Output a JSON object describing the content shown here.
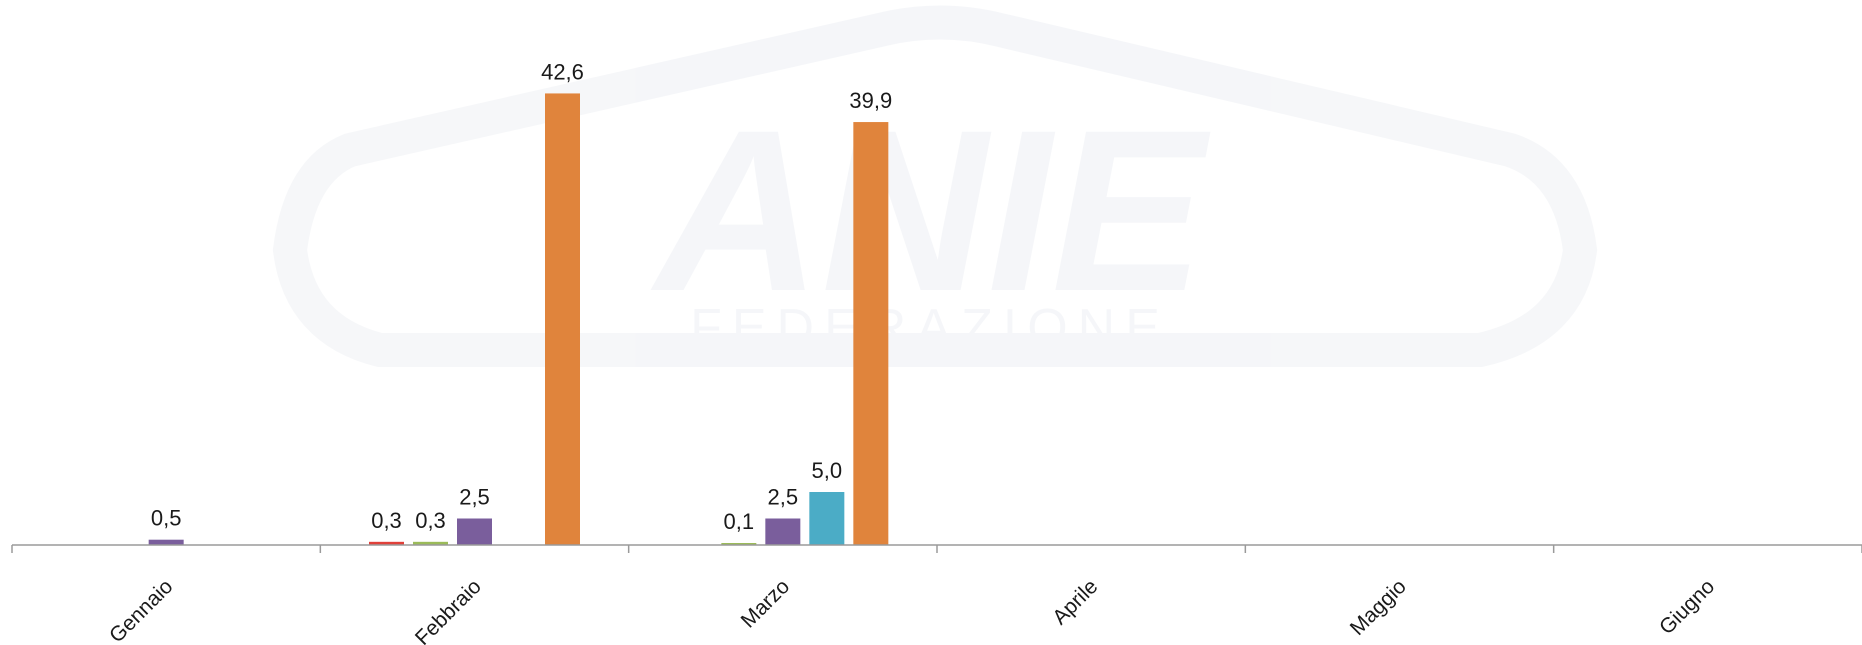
{
  "chart_data": {
    "type": "bar",
    "categories": [
      "Gennaio",
      "Febbraio",
      "Marzo",
      "Aprile",
      "Maggio",
      "Giugno"
    ],
    "ylim": [
      0,
      50
    ],
    "grid": false,
    "legend": "none",
    "series": [
      {
        "color": "#e0403a",
        "values": [
          null,
          0.3,
          null,
          null,
          null,
          null
        ],
        "labels": [
          "",
          "0,3",
          "",
          "",
          "",
          ""
        ]
      },
      {
        "color": "#9bbb59",
        "values": [
          null,
          0.3,
          0.1,
          null,
          null,
          null
        ],
        "labels": [
          "",
          "0,3",
          "0,1",
          "",
          "",
          ""
        ]
      },
      {
        "color": "#7a5e9c",
        "values": [
          0.5,
          2.5,
          2.5,
          null,
          null,
          null
        ],
        "labels": [
          "0,5",
          "2,5",
          "2,5",
          "",
          "",
          ""
        ]
      },
      {
        "color": "#4bacc6",
        "values": [
          null,
          null,
          5.0,
          null,
          null,
          null
        ],
        "labels": [
          "",
          "",
          "5,0",
          "",
          "",
          ""
        ]
      },
      {
        "color": "#e0843c",
        "values": [
          null,
          42.6,
          39.9,
          null,
          null,
          null
        ],
        "labels": [
          "",
          "42,6",
          "39,9",
          "",
          "",
          ""
        ]
      }
    ]
  },
  "watermark": {
    "text": "ANIE",
    "subtext": "FEDERAZIONE"
  }
}
